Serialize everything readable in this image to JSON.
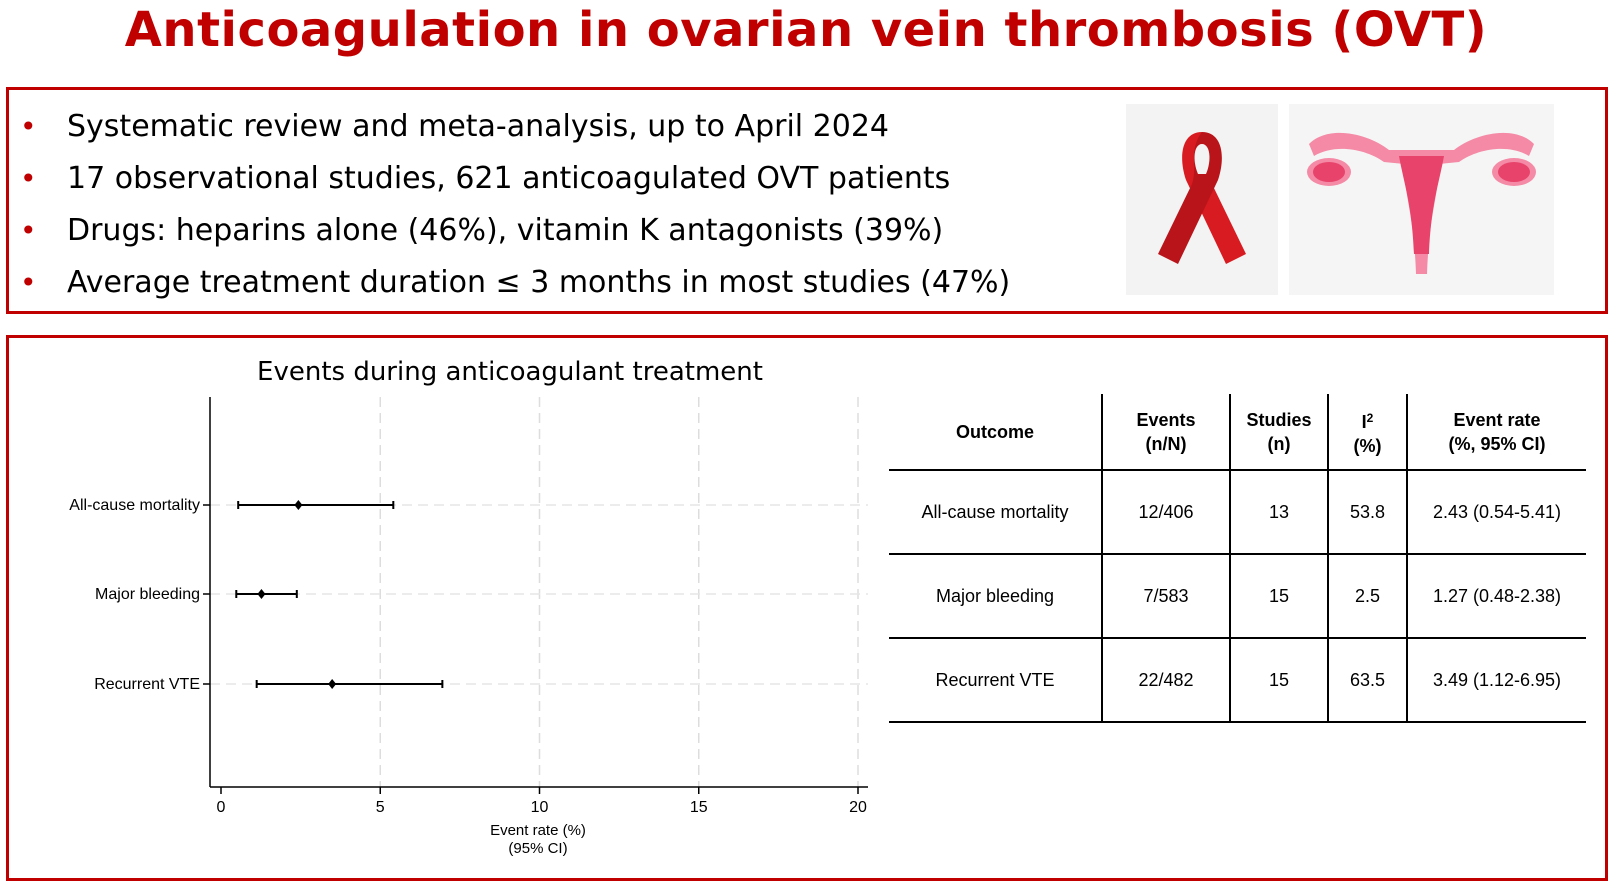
{
  "title": "Anticoagulation in ovarian vein thrombosis (OVT)",
  "bullets": [
    "Systematic review and meta-analysis, up to April 2024",
    "17 observational studies, 621 anticoagulated OVT patients",
    "Drugs: heparins alone (46%), vitamin K antagonists (39%)",
    "Average treatment duration ≤ 3 months in most studies (47%)"
  ],
  "bullet_symbol": "•",
  "colors": {
    "accent": "#c00000",
    "ribbon": "#d81b20",
    "uterus": "#f48aa6",
    "uterus_dark": "#e8436a"
  },
  "table": {
    "headers": {
      "outcome": "Outcome",
      "events": [
        "Events",
        "(n/N)"
      ],
      "studies": [
        "Studies",
        "(n)"
      ],
      "i2": [
        "I",
        "2",
        "(%)"
      ],
      "rate": [
        "Event rate",
        "(%, 95% CI)"
      ]
    },
    "rows": [
      {
        "outcome": "All-cause mortality",
        "events": "12/406",
        "studies": "13",
        "i2": "53.8",
        "rate": "2.43 (0.54-5.41)"
      },
      {
        "outcome": "Major bleeding",
        "events": "7/583",
        "studies": "15",
        "i2": "2.5",
        "rate": "1.27 (0.48-2.38)"
      },
      {
        "outcome": "Recurrent VTE",
        "events": "22/482",
        "studies": "15",
        "i2": "63.5",
        "rate": "3.49 (1.12-6.95)"
      }
    ]
  },
  "chart_data": {
    "type": "scatter",
    "subtype": "forest",
    "title": "Events during anticoagulant treatment",
    "xlabel": [
      "Event rate (%)",
      "(95% CI)"
    ],
    "ylabel": "",
    "xlim": [
      0,
      20
    ],
    "xticks": [
      0,
      5,
      10,
      15,
      20
    ],
    "grid": true,
    "categories": [
      "All-cause mortality",
      "Major bleeding",
      "Recurrent VTE"
    ],
    "estimates": [
      2.43,
      1.27,
      3.49
    ],
    "ci_low": [
      0.54,
      0.48,
      1.12
    ],
    "ci_high": [
      5.41,
      2.38,
      6.95
    ]
  }
}
